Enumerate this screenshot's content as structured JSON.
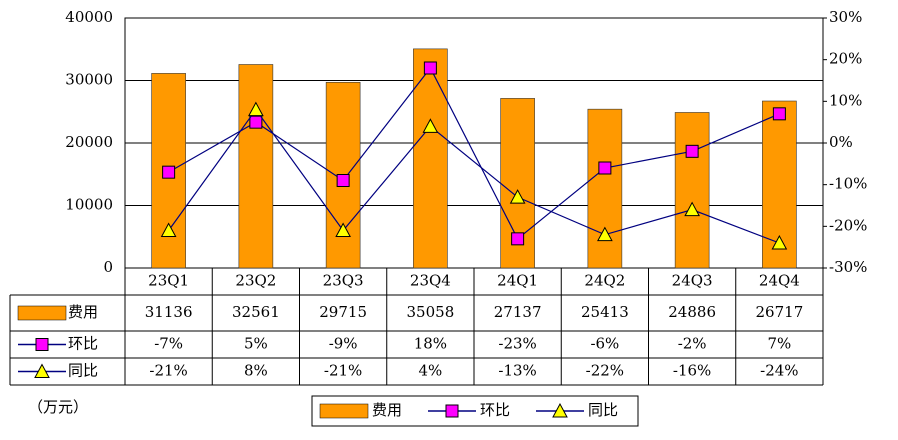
{
  "chart_data": {
    "type": "bar_line_table",
    "categories": [
      "23Q1",
      "23Q2",
      "23Q3",
      "23Q4",
      "24Q1",
      "24Q2",
      "24Q3",
      "24Q4"
    ],
    "series": [
      {
        "name": "费用",
        "type": "bar",
        "color": "#FF9900",
        "values": [
          31136,
          32561,
          29715,
          35058,
          27137,
          25413,
          24886,
          26717
        ]
      },
      {
        "name": "环比",
        "type": "line",
        "axis": "y2",
        "color": "#000080",
        "marker_color": "#FF00FF",
        "marker": "square",
        "values": [
          -7,
          5,
          -9,
          18,
          -23,
          -6,
          -2,
          7
        ],
        "value_labels": [
          "-7%",
          "5%",
          "-9%",
          "18%",
          "-23%",
          "-6%",
          "-2%",
          "7%"
        ]
      },
      {
        "name": "同比",
        "type": "line",
        "axis": "y2",
        "color": "#000080",
        "marker_color": "#FFFF00",
        "marker": "triangle",
        "values": [
          -21,
          8,
          -21,
          4,
          -13,
          -22,
          -16,
          -24
        ],
        "value_labels": [
          "-21%",
          "8%",
          "-21%",
          "4%",
          "-13%",
          "-22%",
          "-16%",
          "-24%"
        ]
      }
    ],
    "ylim": [
      0,
      40000
    ],
    "yticks": [
      0,
      10000,
      20000,
      30000,
      40000
    ],
    "y2lim": [
      -30,
      30
    ],
    "y2ticks": [
      {
        "value": -30,
        "label": "-30%"
      },
      {
        "value": -20,
        "label": "-20%"
      },
      {
        "value": -10,
        "label": "-10%"
      },
      {
        "value": 0,
        "label": "0%"
      },
      {
        "value": 10,
        "label": "10%"
      },
      {
        "value": 20,
        "label": "20%"
      },
      {
        "value": 30,
        "label": "30%"
      }
    ],
    "grid": true,
    "unit_label": "（万元）"
  }
}
